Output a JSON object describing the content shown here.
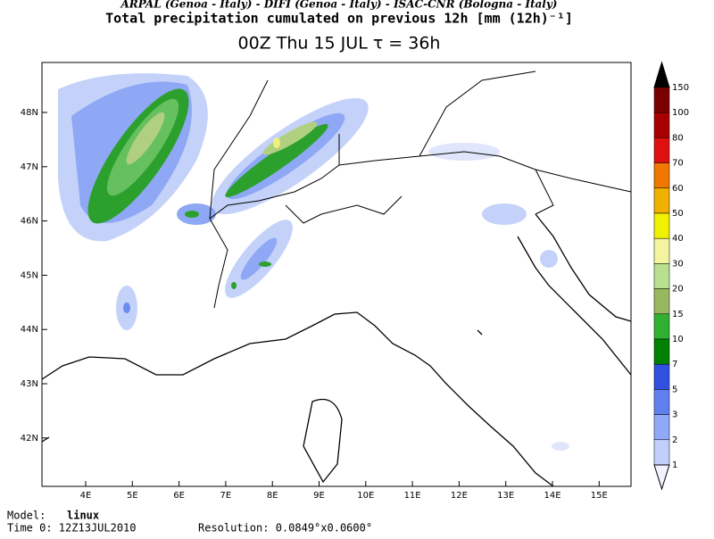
{
  "header": {
    "institutions": "ARPAL (Genoa - Italy)  -  DIFI (Genoa - Italy)  -  ISAC-CNR (Bologna - Italy)",
    "title": "Total precipitation cumulated on previous 12h [mm (12h)⁻¹]",
    "subtitle": "00Z Thu 15 JUL  τ = 36h"
  },
  "map": {
    "lon_ticks": [
      "4E",
      "5E",
      "6E",
      "7E",
      "8E",
      "9E",
      "10E",
      "11E",
      "12E",
      "13E",
      "14E",
      "15E"
    ],
    "lat_ticks": [
      "48N",
      "47N",
      "46N",
      "45N",
      "44N",
      "43N",
      "42N"
    ]
  },
  "legend": {
    "levels": [
      150,
      100,
      80,
      70,
      60,
      50,
      40,
      30,
      20,
      15,
      10,
      7,
      5,
      3,
      2,
      1
    ]
  },
  "footer": {
    "model_label": "Model:",
    "model": "linux",
    "time": "Time 0: 12Z13JUL2010",
    "resolution": "Resolution: 0.0849°x0.0600°"
  }
}
